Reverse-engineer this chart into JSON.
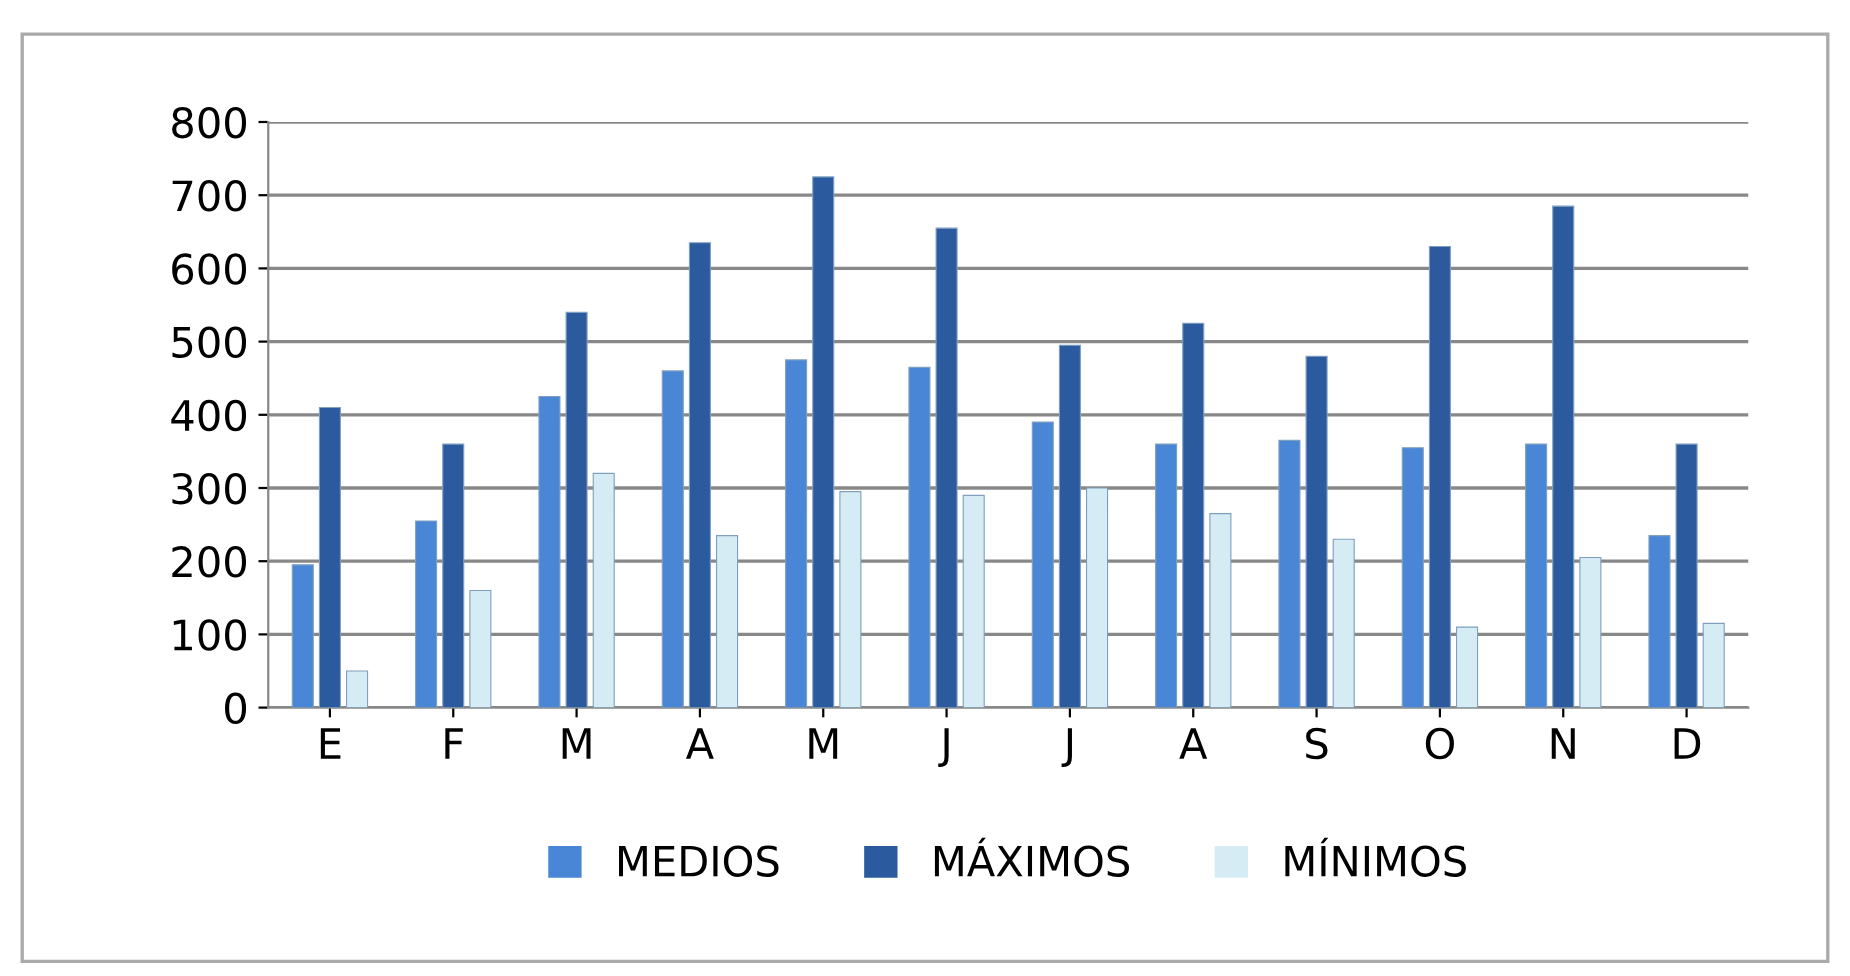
{
  "chart_data": {
    "type": "bar",
    "categories": [
      "E",
      "F",
      "M",
      "A",
      "M",
      "J",
      "J",
      "A",
      "S",
      "O",
      "N",
      "D"
    ],
    "series": [
      {
        "name": "MEDIOS",
        "color": "#4a86d6",
        "values": [
          195,
          255,
          425,
          460,
          475,
          465,
          390,
          360,
          365,
          355,
          360,
          235
        ]
      },
      {
        "name": "MÁXIMOS",
        "color": "#2b5a9e",
        "values": [
          410,
          360,
          540,
          635,
          725,
          655,
          495,
          525,
          480,
          630,
          685,
          360
        ]
      },
      {
        "name": "MÍNIMOS",
        "color": "#d6ecf4",
        "values": [
          50,
          160,
          320,
          235,
          295,
          290,
          300,
          265,
          230,
          110,
          205,
          115
        ]
      }
    ],
    "ylim": [
      0,
      800
    ],
    "yticks": [
      0,
      100,
      200,
      300,
      400,
      500,
      600,
      700,
      800
    ],
    "grid": "y",
    "legend": "bottom"
  }
}
